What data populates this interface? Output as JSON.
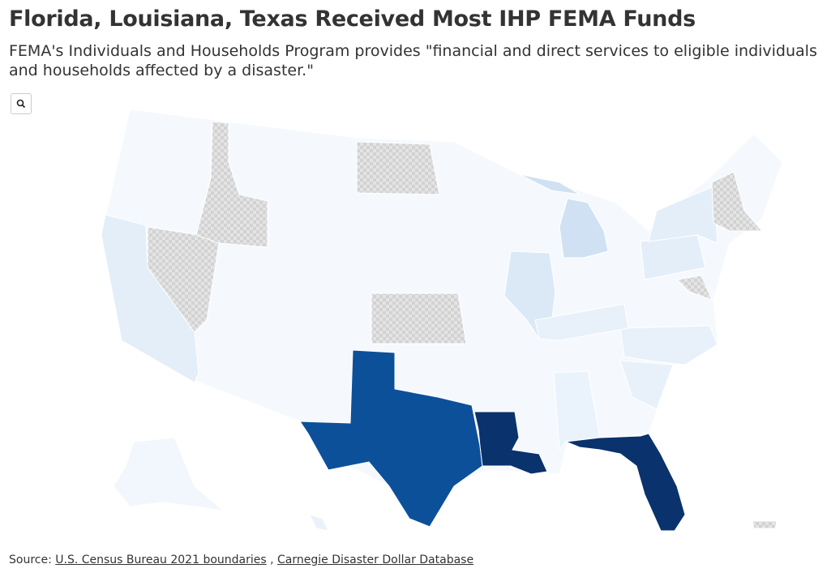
{
  "header": {
    "title": "Florida, Louisiana, Texas Received Most IHP FEMA Funds",
    "subtitle": "FEMA's Individuals and Households Program provides \"financial and direct services to eligible individuals and households affected by a disaster.\""
  },
  "source": {
    "label": "Source:",
    "links": [
      "U.S. Census Bureau 2021 boundaries",
      "Carnegie Disaster Dollar Database"
    ],
    "separator": ","
  }
}
